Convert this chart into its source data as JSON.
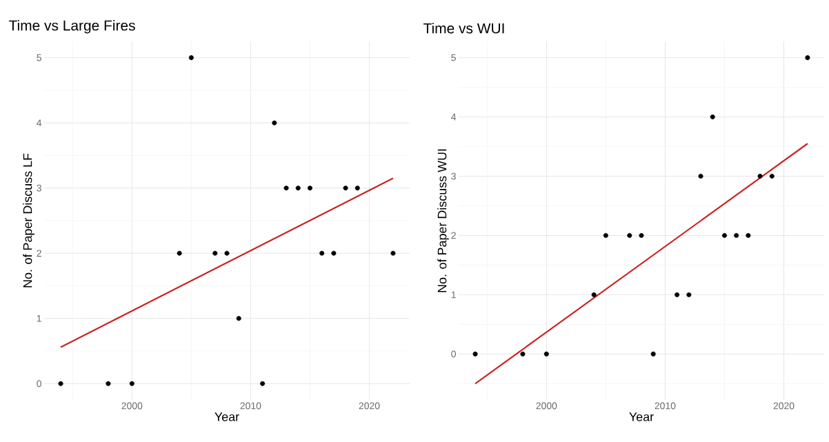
{
  "chart_data": [
    {
      "type": "scatter",
      "title": "Time vs Large Fires",
      "xlabel": "Year",
      "ylabel": "No. of Paper Discuss LF",
      "xlim": [
        1992.6,
        2023.4
      ],
      "ylim": [
        -0.25,
        5.25
      ],
      "xticks": [
        2000,
        2010,
        2020
      ],
      "yticks": [
        0,
        1,
        2,
        3,
        4,
        5
      ],
      "grid": true,
      "series": [
        {
          "type": "scatter",
          "marker": "circle",
          "color": "#000000",
          "x": [
            1994,
            1998,
            2000,
            2004,
            2005,
            2007,
            2008,
            2009,
            2011,
            2012,
            2013,
            2014,
            2015,
            2016,
            2017,
            2018,
            2019,
            2022
          ],
          "values": [
            0,
            0,
            0,
            2,
            5,
            2,
            2,
            1,
            0,
            4,
            3,
            3,
            3,
            2,
            2,
            3,
            3,
            2
          ]
        },
        {
          "type": "line",
          "marker": "none",
          "color": "#cc2222",
          "x": [
            1994,
            2022
          ],
          "values": [
            0.56,
            3.15
          ]
        }
      ]
    },
    {
      "type": "scatter",
      "title": "Time vs WUI",
      "xlabel": "Year",
      "ylabel": "No. of Paper Discuss WUI",
      "xlim": [
        1992.6,
        2023.4
      ],
      "ylim": [
        -0.775,
        5.275
      ],
      "xticks": [
        2000,
        2010,
        2020
      ],
      "yticks": [
        0,
        1,
        2,
        3,
        4,
        5
      ],
      "grid": true,
      "series": [
        {
          "type": "scatter",
          "marker": "circle",
          "color": "#000000",
          "x": [
            1994,
            1998,
            2000,
            2004,
            2005,
            2007,
            2008,
            2009,
            2011,
            2012,
            2013,
            2014,
            2015,
            2016,
            2017,
            2018,
            2019,
            2022
          ],
          "values": [
            0,
            0,
            0,
            1,
            2,
            2,
            2,
            0,
            1,
            1,
            3,
            4,
            2,
            2,
            2,
            3,
            3,
            5
          ]
        },
        {
          "type": "line",
          "marker": "none",
          "color": "#cc2222",
          "x": [
            1994,
            2022
          ],
          "values": [
            -0.5,
            3.55
          ]
        }
      ]
    }
  ]
}
